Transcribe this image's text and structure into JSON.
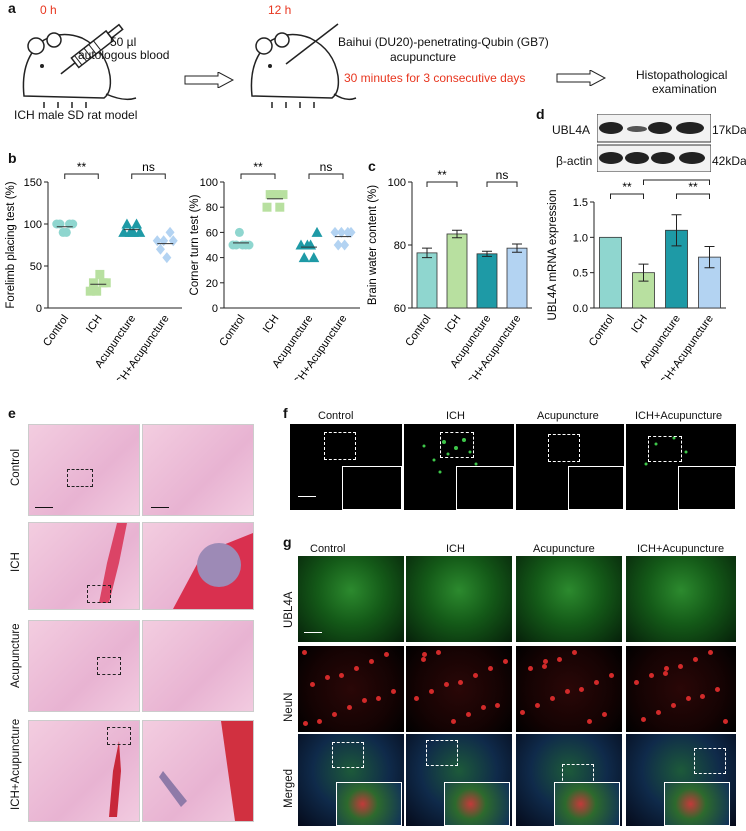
{
  "panel_a": {
    "label": "a",
    "time0": "0 h",
    "time12": "12 h",
    "blood_vol": "50 µl",
    "blood": "autologous blood",
    "model": "ICH male SD rat model",
    "acu_line1": "Baihui (DU20)-penetrating-Qubin (GB7)",
    "acu_line2": "acupuncture",
    "acu_duration": "30 minutes for 3 consecutive days",
    "histo1": "Histopathological",
    "histo2": "examination"
  },
  "panel_labels": {
    "b": "b",
    "c": "c",
    "d": "d",
    "e": "e",
    "f": "f",
    "g": "g"
  },
  "groups": [
    "Control",
    "ICH",
    "Acupuncture",
    "ICH+Acupuncture"
  ],
  "colors": {
    "control": "#8fd6cf",
    "ich": "#b8e0a0",
    "acu": "#1e9aa6",
    "ichacu": "#b3d3f2",
    "red": "#e8361f"
  },
  "sig": {
    "double": "**",
    "single": "*",
    "ns": "ns"
  },
  "blot": {
    "ubl4a": "UBL4A",
    "actin": "β-actin",
    "kda17": "17kDa",
    "kda42": "42kDa"
  },
  "panel_e_rows": [
    "Control",
    "ICH",
    "Acupuncture",
    "ICH+Acupuncture"
  ],
  "panel_g_rows": [
    "UBL4A",
    "NeuN",
    "Merged"
  ],
  "chart_data": [
    {
      "type": "scatter",
      "panel": "b-left",
      "ylabel": "Forelimb placing test (%)",
      "ylim": [
        0,
        150
      ],
      "yticks": [
        0,
        50,
        100,
        150
      ],
      "categories": [
        "Control",
        "ICH",
        "Acupuncture",
        "ICH+Acupuncture"
      ],
      "values": [
        [
          100,
          100,
          90,
          90,
          100,
          100
        ],
        [
          20,
          30,
          20,
          40,
          30,
          30
        ],
        [
          90,
          100,
          90,
          90,
          100,
          90
        ],
        [
          80,
          70,
          80,
          60,
          90,
          80
        ]
      ],
      "markers": [
        "circle",
        "square",
        "triangle",
        "diamond"
      ],
      "comparisons": [
        {
          "pair": [
            0,
            1
          ],
          "label": "**"
        },
        {
          "pair": [
            2,
            3
          ],
          "label": "ns"
        }
      ]
    },
    {
      "type": "scatter",
      "panel": "b-right",
      "ylabel": "Corner turn test (%)",
      "ylim": [
        0,
        100
      ],
      "yticks": [
        0,
        20,
        40,
        60,
        80,
        100
      ],
      "categories": [
        "Control",
        "ICH",
        "Acupuncture",
        "ICH+Acupuncture"
      ],
      "values": [
        [
          50,
          50,
          60,
          50,
          50,
          50
        ],
        [
          80,
          90,
          90,
          90,
          80,
          90
        ],
        [
          50,
          40,
          50,
          50,
          40,
          60
        ],
        [
          60,
          50,
          60,
          50,
          60,
          60
        ]
      ],
      "markers": [
        "circle",
        "square",
        "triangle",
        "diamond"
      ],
      "comparisons": [
        {
          "pair": [
            0,
            1
          ],
          "label": "**"
        },
        {
          "pair": [
            2,
            3
          ],
          "label": "ns"
        }
      ]
    },
    {
      "type": "bar",
      "panel": "c",
      "ylabel": "Brain water content (%)",
      "ylim": [
        60,
        100
      ],
      "yticks": [
        60,
        80,
        100
      ],
      "categories": [
        "Control",
        "ICH",
        "Acupuncture",
        "ICH+Acupuncture"
      ],
      "values": [
        77.5,
        83.5,
        77.2,
        79.0
      ],
      "errors": [
        1.5,
        1.2,
        0.8,
        1.3
      ],
      "comparisons": [
        {
          "pair": [
            0,
            1
          ],
          "label": "**"
        },
        {
          "pair": [
            2,
            3
          ],
          "label": "ns"
        }
      ]
    },
    {
      "type": "bar",
      "panel": "d",
      "ylabel": "UBL4A mRNA expression",
      "ylim": [
        0,
        1.5
      ],
      "yticks": [
        0.0,
        0.5,
        1.0,
        1.5
      ],
      "categories": [
        "Control",
        "ICH",
        "Acupuncture",
        "ICH+Acupuncture"
      ],
      "values": [
        1.0,
        0.5,
        1.1,
        0.72
      ],
      "errors": [
        0,
        0.12,
        0.22,
        0.15
      ],
      "comparisons": [
        {
          "pair": [
            0,
            1
          ],
          "label": "**"
        },
        {
          "pair": [
            1,
            3
          ],
          "label": "*"
        },
        {
          "pair": [
            2,
            3
          ],
          "label": "**"
        }
      ]
    }
  ]
}
